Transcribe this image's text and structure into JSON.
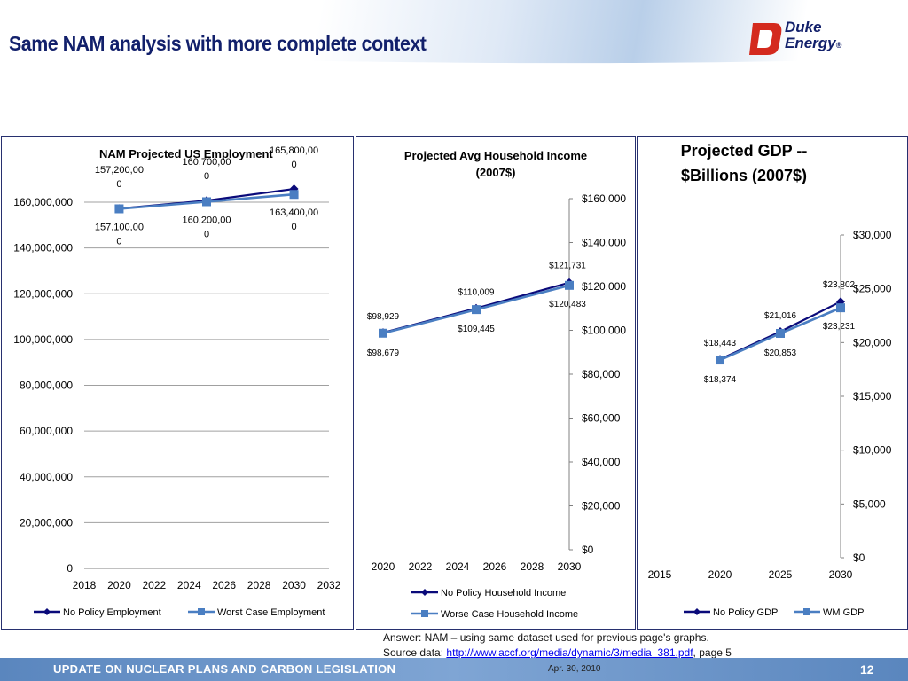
{
  "header": {
    "title": "Same NAM analysis with more complete context",
    "logo_line1": "Duke",
    "logo_line2": "Energy",
    "logo_mark": "®"
  },
  "notes": {
    "answer": "Answer:  NAM – using same dataset used for previous page's graphs.",
    "source_label": "Source data:",
    "source_link": "http://www.accf.org/media/dynamic/3/media_381.pdf",
    "source_suffix": ", page 5"
  },
  "footer": {
    "left": "UPDATE ON NUCLEAR PLANS AND CARBON LEGISLATION",
    "date": "Apr. 30, 2010",
    "page": "12"
  },
  "colors": {
    "series1": "#0a0a7a",
    "series2": "#4a7ec2",
    "grid": "#a0a0a0",
    "accent": "#12206b"
  },
  "chart_data": [
    {
      "type": "line",
      "title": "NAM Projected US Employment",
      "x": [
        2020,
        2025,
        2030
      ],
      "xticks": [
        "2018",
        "2020",
        "2022",
        "2024",
        "2026",
        "2028",
        "2030",
        "2032"
      ],
      "xlim": [
        2018,
        2032
      ],
      "ylim": [
        0,
        160000000
      ],
      "yticks": [
        "0",
        "20,000,000",
        "40,000,000",
        "60,000,000",
        "80,000,000",
        "100,000,000",
        "120,000,000",
        "140,000,000",
        "160,000,000"
      ],
      "series": [
        {
          "name": "No Policy Employment",
          "values": [
            157200000,
            160700000,
            165800000
          ],
          "labels": [
            "157,200,000",
            "160,700,000",
            "165,800,000"
          ]
        },
        {
          "name": "Worst Case Employment",
          "values": [
            157100000,
            160200000,
            163400000
          ],
          "labels": [
            "157,100,000",
            "160,200,000",
            "163,400,000"
          ]
        }
      ]
    },
    {
      "type": "line",
      "title": "Projected Avg Household Income (2007$)",
      "x": [
        2020,
        2025,
        2030
      ],
      "xticks": [
        "2020",
        "2022",
        "2024",
        "2026",
        "2028",
        "2030"
      ],
      "xlim": [
        2020,
        2030
      ],
      "ylim": [
        0,
        160000
      ],
      "yticks": [
        "$0",
        "$20,000",
        "$40,000",
        "$60,000",
        "$80,000",
        "$100,000",
        "$120,000",
        "$140,000",
        "$160,000"
      ],
      "series": [
        {
          "name": "No Policy Household Income",
          "values": [
            98929,
            110009,
            121731
          ],
          "labels": [
            "$98,929",
            "$110,009",
            "$121,731"
          ]
        },
        {
          "name": "Worse Case Household Income",
          "values": [
            98679,
            109445,
            120483
          ],
          "labels": [
            "$98,679",
            "$109,445",
            "$120,483"
          ]
        }
      ]
    },
    {
      "type": "line",
      "title": "Projected GDP -- $Billions (2007$)",
      "x": [
        2020,
        2025,
        2030
      ],
      "xticks": [
        "2015",
        "2020",
        "2025",
        "2030"
      ],
      "xlim": [
        2015,
        2030
      ],
      "ylim": [
        0,
        30000
      ],
      "yticks": [
        "$0",
        "$5,000",
        "$10,000",
        "$15,000",
        "$20,000",
        "$25,000",
        "$30,000"
      ],
      "series": [
        {
          "name": "No Policy GDP",
          "values": [
            18443,
            21016,
            23802
          ],
          "labels": [
            "$18,443",
            "$21,016",
            "$23,802"
          ]
        },
        {
          "name": "WM GDP",
          "values": [
            18374,
            20853,
            23231
          ],
          "labels": [
            "$18,374",
            "$20,853",
            "$23,231"
          ]
        }
      ]
    }
  ]
}
